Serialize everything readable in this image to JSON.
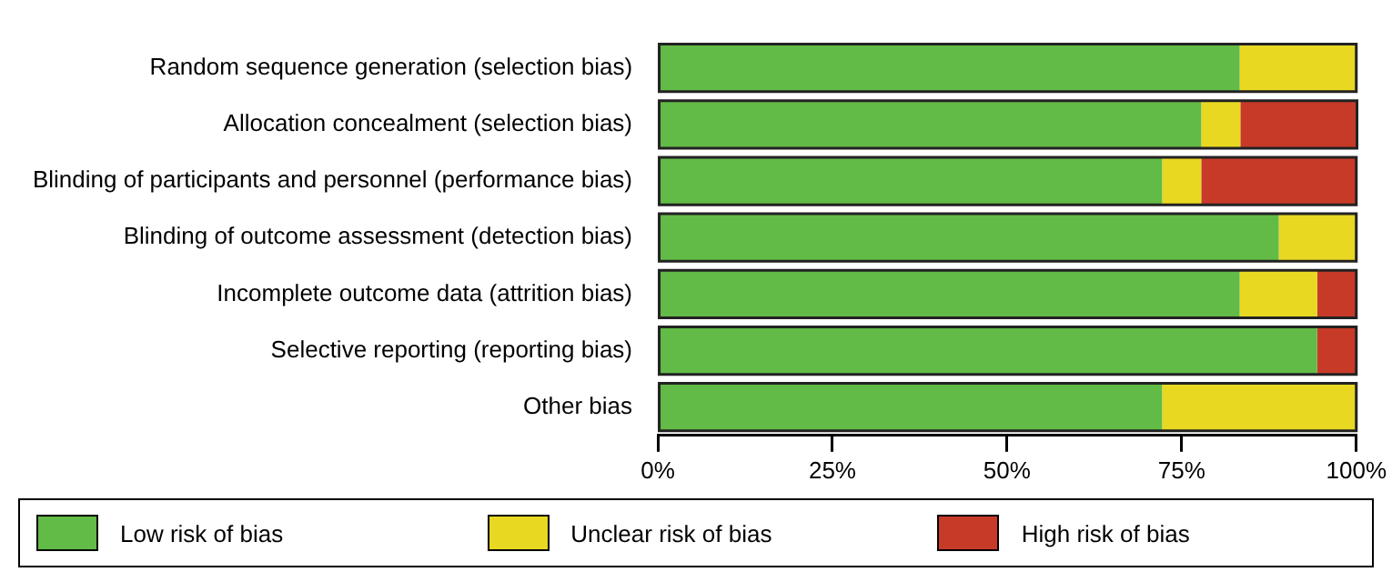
{
  "chart_data": {
    "type": "bar",
    "orientation": "horizontal",
    "stacked": true,
    "grid": false,
    "legend": "bottom",
    "categories": [
      "Random sequence generation (selection bias)",
      "Allocation concealment (selection bias)",
      "Blinding of participants and personnel (performance bias)",
      "Blinding of outcome assessment (detection bias)",
      "Incomplete outcome data (attrition bias)",
      "Selective reporting (reporting bias)",
      "Other bias"
    ],
    "series": [
      {
        "name": "Low risk of bias",
        "color": "#62bb46",
        "values": [
          83.3,
          77.8,
          72.2,
          88.9,
          83.3,
          94.4,
          72.2
        ]
      },
      {
        "name": "Unclear risk of bias",
        "color": "#e8d822",
        "values": [
          16.7,
          5.6,
          5.6,
          11.1,
          11.1,
          0,
          27.8
        ]
      },
      {
        "name": "High risk of bias",
        "color": "#c83a28",
        "values": [
          0,
          16.7,
          22.2,
          0,
          5.6,
          5.6,
          0
        ]
      }
    ],
    "xlim": [
      0,
      100
    ],
    "xticks": [
      {
        "value": 0,
        "label": "0%"
      },
      {
        "value": 25,
        "label": "25%"
      },
      {
        "value": 50,
        "label": "50%"
      },
      {
        "value": 75,
        "label": "75%"
      },
      {
        "value": 100,
        "label": "100%"
      }
    ]
  }
}
